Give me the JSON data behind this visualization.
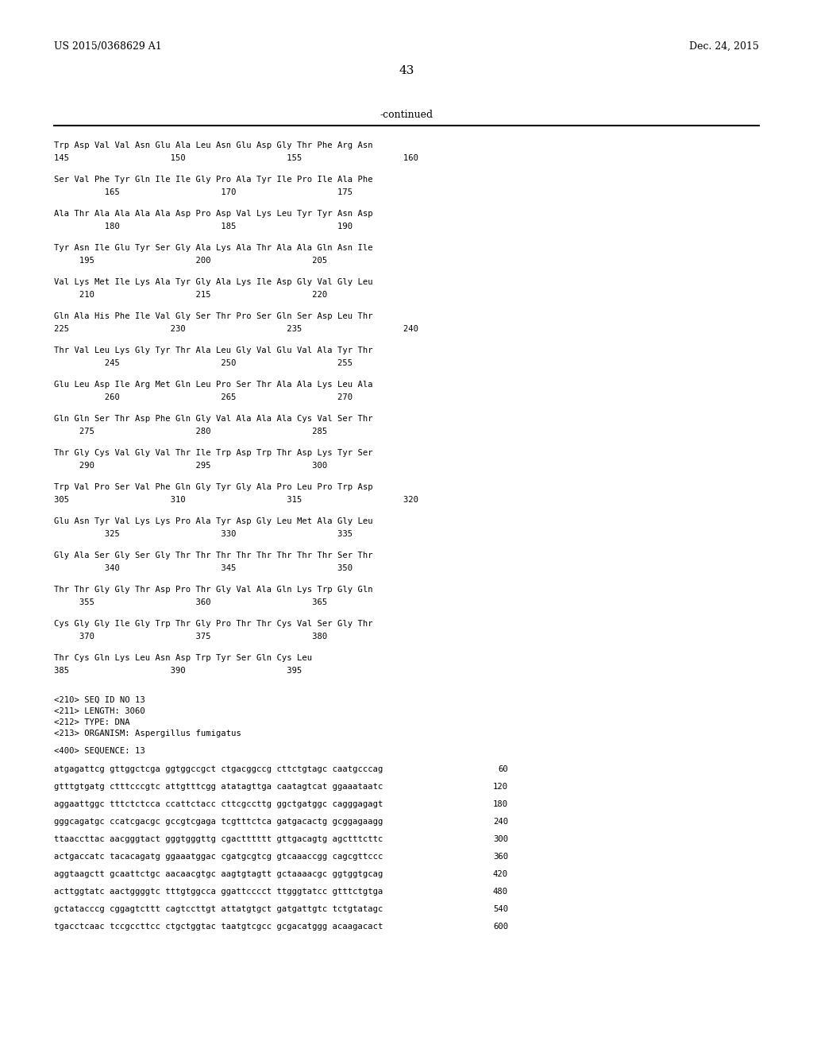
{
  "header_left": "US 2015/0368629 A1",
  "header_right": "Dec. 24, 2015",
  "page_number": "43",
  "continued_label": "-continued",
  "background_color": "#ffffff",
  "text_color": "#000000",
  "seq_lines": [
    [
      "Trp Asp Val Val Asn Glu Ala Leu Asn Glu Asp Gly Thr Phe Arg Asn",
      "145                    150                    155                    160"
    ],
    [
      "Ser Val Phe Tyr Gln Ile Ile Gly Pro Ala Tyr Ile Pro Ile Ala Phe",
      "          165                    170                    175"
    ],
    [
      "Ala Thr Ala Ala Ala Ala Asp Pro Asp Val Lys Leu Tyr Tyr Asn Asp",
      "          180                    185                    190"
    ],
    [
      "Tyr Asn Ile Glu Tyr Ser Gly Ala Lys Ala Thr Ala Ala Gln Asn Ile",
      "     195                    200                    205"
    ],
    [
      "Val Lys Met Ile Lys Ala Tyr Gly Ala Lys Ile Asp Gly Val Gly Leu",
      "     210                    215                    220"
    ],
    [
      "Gln Ala His Phe Ile Val Gly Ser Thr Pro Ser Gln Ser Asp Leu Thr",
      "225                    230                    235                    240"
    ],
    [
      "Thr Val Leu Lys Gly Tyr Thr Ala Leu Gly Val Glu Val Ala Tyr Thr",
      "          245                    250                    255"
    ],
    [
      "Glu Leu Asp Ile Arg Met Gln Leu Pro Ser Thr Ala Ala Lys Leu Ala",
      "          260                    265                    270"
    ],
    [
      "Gln Gln Ser Thr Asp Phe Gln Gly Val Ala Ala Ala Cys Val Ser Thr",
      "     275                    280                    285"
    ],
    [
      "Thr Gly Cys Val Gly Val Thr Ile Trp Asp Trp Thr Asp Lys Tyr Ser",
      "     290                    295                    300"
    ],
    [
      "Trp Val Pro Ser Val Phe Gln Gly Tyr Gly Ala Pro Leu Pro Trp Asp",
      "305                    310                    315                    320"
    ],
    [
      "Glu Asn Tyr Val Lys Lys Pro Ala Tyr Asp Gly Leu Met Ala Gly Leu",
      "          325                    330                    335"
    ],
    [
      "Gly Ala Ser Gly Ser Gly Thr Thr Thr Thr Thr Thr Thr Thr Ser Thr",
      "          340                    345                    350"
    ],
    [
      "Thr Thr Gly Gly Thr Asp Pro Thr Gly Val Ala Gln Lys Trp Gly Gln",
      "     355                    360                    365"
    ],
    [
      "Cys Gly Gly Ile Gly Trp Thr Gly Pro Thr Thr Cys Val Ser Gly Thr",
      "     370                    375                    380"
    ],
    [
      "Thr Cys Gln Lys Leu Asn Asp Trp Tyr Ser Gln Cys Leu",
      "385                    390                    395"
    ]
  ],
  "meta_lines": [
    "<210> SEQ ID NO 13",
    "<211> LENGTH: 3060",
    "<212> TYPE: DNA",
    "<213> ORGANISM: Aspergillus fumigatus"
  ],
  "seq400_label": "<400> SEQUENCE: 13",
  "dna_lines": [
    [
      "atgagattcg gttggctcga ggtggccgct ctgacggccg cttctgtagc caatgcccag",
      "60"
    ],
    [
      "gtttgtgatg ctttcccgtc attgtttcgg atatagttga caatagtcat ggaaataatc",
      "120"
    ],
    [
      "aggaattggc tttctctcca ccattctacc cttcgccttg ggctgatggc cagggagagt",
      "180"
    ],
    [
      "gggcagatgc ccatcgacgc gccgtcgaga tcgtttctca gatgacactg gcggagaagg",
      "240"
    ],
    [
      "ttaaccttac aacgggtact gggtgggttg cgactttttt gttgacagtg agctttcttc",
      "300"
    ],
    [
      "actgaccatc tacacagatg ggaaatggac cgatgcgtcg gtcaaaccgg cagcgttccc",
      "360"
    ],
    [
      "aggtaagctt gcaattctgc aacaacgtgc aagtgtagtt gctaaaacgc ggtggtgcag",
      "420"
    ],
    [
      "acttggtatc aactggggtc tttgtggcca ggattcccct ttgggtatcc gtttctgtga",
      "480"
    ],
    [
      "gctatacccg cggagtcttt cagtccttgt attatgtgct gatgattgtc tctgtatagc",
      "540"
    ],
    [
      "tgacctcaac tccgccttcc ctgctggtac taatgtcgcc gcgacatggg acaagacact",
      "600"
    ]
  ]
}
